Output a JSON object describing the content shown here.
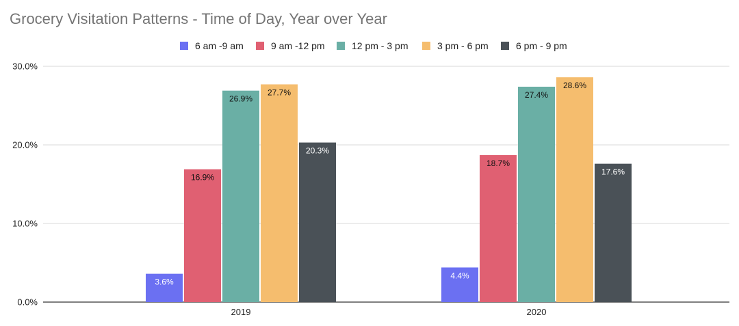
{
  "chart_data": {
    "type": "bar",
    "title": "Grocery Visitation Patterns - Time of Day, Year over Year",
    "xlabel": "",
    "ylabel": "",
    "categories": [
      "2019",
      "2020"
    ],
    "ylim": [
      0,
      30
    ],
    "yticks": [
      0,
      10,
      20,
      30
    ],
    "ytick_labels": [
      "0.0%",
      "10.0%",
      "20.0%",
      "30.0%"
    ],
    "grid": true,
    "legend_position": "top-center",
    "series": [
      {
        "name": "6 am -9 am",
        "color": "#6b70f2",
        "values": [
          3.6,
          4.4
        ],
        "labels": [
          "3.6%",
          "4.4%"
        ],
        "label_color": "#ffffff"
      },
      {
        "name": "9 am -12 pm",
        "color": "#e06072",
        "values": [
          16.9,
          18.7
        ],
        "labels": [
          "16.9%",
          "18.7%"
        ],
        "label_color": "#111111"
      },
      {
        "name": "12 pm - 3 pm",
        "color": "#6aafa5",
        "values": [
          26.9,
          27.4
        ],
        "labels": [
          "26.9%",
          "27.4%"
        ],
        "label_color": "#111111"
      },
      {
        "name": "3 pm - 6 pm",
        "color": "#f5bd6e",
        "values": [
          27.7,
          28.6
        ],
        "labels": [
          "27.7%",
          "28.6%"
        ],
        "label_color": "#111111"
      },
      {
        "name": "6 pm - 9 pm",
        "color": "#4a5157",
        "values": [
          20.3,
          17.6
        ],
        "labels": [
          "20.3%",
          "17.6%"
        ],
        "label_color": "#ffffff"
      }
    ]
  }
}
